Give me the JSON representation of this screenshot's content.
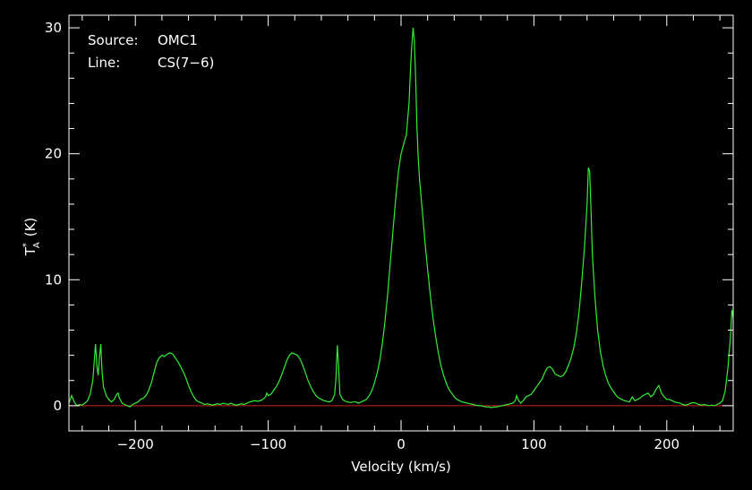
{
  "colors": {
    "background": "#000000",
    "axis": "#ffffff",
    "spectrum": "#33ee33",
    "baseline": "#cc2222"
  },
  "chart_data": {
    "type": "line",
    "title": "",
    "xlabel": "Velocity (km/s)",
    "ylabel_main": "T",
    "ylabel_sup": "*",
    "ylabel_sub": "A",
    "ylabel_unit": "(K)",
    "xlim": [
      -250,
      250
    ],
    "ylim": [
      -2,
      31
    ],
    "xticks": [
      -200,
      -100,
      0,
      100,
      200
    ],
    "yticks": [
      0,
      10,
      20,
      30
    ],
    "x_tick_labels": [
      "−200",
      "−100",
      "0",
      "100",
      "200"
    ],
    "y_tick_labels": [
      "0",
      "10",
      "20",
      "30"
    ],
    "annotation": {
      "source_label": "Source:",
      "source_value": "OMC1",
      "line_label": "Line:",
      "line_value": "CS(7−6)"
    },
    "baseline_y": 0,
    "series": [
      {
        "points": [
          [
            -250,
            0.2
          ],
          [
            -248,
            0.8
          ],
          [
            -246,
            0.3
          ],
          [
            -244,
            0.0
          ],
          [
            -242,
            0.1
          ],
          [
            -240,
            0.05
          ],
          [
            -238,
            0.2
          ],
          [
            -236,
            0.4
          ],
          [
            -234,
            0.9
          ],
          [
            -232,
            2.0
          ],
          [
            -230,
            4.9
          ],
          [
            -229,
            3.2
          ],
          [
            -228,
            2.4
          ],
          [
            -227,
            3.8
          ],
          [
            -226,
            4.9
          ],
          [
            -225,
            2.6
          ],
          [
            -224,
            1.5
          ],
          [
            -222,
            0.8
          ],
          [
            -220,
            0.5
          ],
          [
            -218,
            0.3
          ],
          [
            -216,
            0.5
          ],
          [
            -214,
            0.9
          ],
          [
            -213,
            1.0
          ],
          [
            -212,
            0.6
          ],
          [
            -210,
            0.2
          ],
          [
            -208,
            0.1
          ],
          [
            -206,
            0.0
          ],
          [
            -204,
            -0.1
          ],
          [
            -202,
            0.1
          ],
          [
            -200,
            0.2
          ],
          [
            -198,
            0.3
          ],
          [
            -196,
            0.5
          ],
          [
            -194,
            0.6
          ],
          [
            -192,
            0.8
          ],
          [
            -190,
            1.2
          ],
          [
            -188,
            1.8
          ],
          [
            -186,
            2.6
          ],
          [
            -184,
            3.4
          ],
          [
            -182,
            3.8
          ],
          [
            -180,
            4.0
          ],
          [
            -178,
            3.9
          ],
          [
            -176,
            4.1
          ],
          [
            -174,
            4.2
          ],
          [
            -172,
            4.1
          ],
          [
            -170,
            3.8
          ],
          [
            -168,
            3.5
          ],
          [
            -166,
            3.1
          ],
          [
            -164,
            2.7
          ],
          [
            -162,
            2.2
          ],
          [
            -160,
            1.6
          ],
          [
            -158,
            1.1
          ],
          [
            -156,
            0.7
          ],
          [
            -154,
            0.4
          ],
          [
            -152,
            0.3
          ],
          [
            -150,
            0.2
          ],
          [
            -148,
            0.1
          ],
          [
            -146,
            0.15
          ],
          [
            -144,
            0.1
          ],
          [
            -142,
            0.05
          ],
          [
            -140,
            0.1
          ],
          [
            -138,
            0.15
          ],
          [
            -136,
            0.1
          ],
          [
            -134,
            0.2
          ],
          [
            -132,
            0.15
          ],
          [
            -130,
            0.1
          ],
          [
            -128,
            0.2
          ],
          [
            -126,
            0.1
          ],
          [
            -124,
            0.05
          ],
          [
            -122,
            0.1
          ],
          [
            -120,
            0.15
          ],
          [
            -118,
            0.1
          ],
          [
            -116,
            0.2
          ],
          [
            -114,
            0.3
          ],
          [
            -112,
            0.35
          ],
          [
            -110,
            0.4
          ],
          [
            -108,
            0.35
          ],
          [
            -106,
            0.4
          ],
          [
            -104,
            0.5
          ],
          [
            -102,
            0.7
          ],
          [
            -101,
            1.0
          ],
          [
            -100,
            0.8
          ],
          [
            -98,
            0.9
          ],
          [
            -96,
            1.2
          ],
          [
            -94,
            1.5
          ],
          [
            -92,
            1.9
          ],
          [
            -90,
            2.4
          ],
          [
            -88,
            3.0
          ],
          [
            -86,
            3.6
          ],
          [
            -84,
            4.0
          ],
          [
            -82,
            4.2
          ],
          [
            -80,
            4.1
          ],
          [
            -78,
            4.0
          ],
          [
            -76,
            3.7
          ],
          [
            -74,
            3.2
          ],
          [
            -72,
            2.6
          ],
          [
            -70,
            2.0
          ],
          [
            -68,
            1.5
          ],
          [
            -66,
            1.1
          ],
          [
            -64,
            0.8
          ],
          [
            -62,
            0.6
          ],
          [
            -60,
            0.5
          ],
          [
            -58,
            0.4
          ],
          [
            -56,
            0.35
          ],
          [
            -54,
            0.3
          ],
          [
            -52,
            0.4
          ],
          [
            -50,
            0.9
          ],
          [
            -49,
            2.2
          ],
          [
            -48,
            4.8
          ],
          [
            -47,
            3.0
          ],
          [
            -46,
            0.9
          ],
          [
            -44,
            0.5
          ],
          [
            -42,
            0.35
          ],
          [
            -40,
            0.3
          ],
          [
            -38,
            0.25
          ],
          [
            -36,
            0.3
          ],
          [
            -34,
            0.3
          ],
          [
            -32,
            0.2
          ],
          [
            -30,
            0.3
          ],
          [
            -28,
            0.4
          ],
          [
            -26,
            0.5
          ],
          [
            -24,
            0.8
          ],
          [
            -22,
            1.2
          ],
          [
            -20,
            1.8
          ],
          [
            -18,
            2.6
          ],
          [
            -16,
            3.6
          ],
          [
            -14,
            5.0
          ],
          [
            -12,
            6.8
          ],
          [
            -10,
            9.0
          ],
          [
            -8,
            11.5
          ],
          [
            -6,
            14.0
          ],
          [
            -4,
            16.5
          ],
          [
            -2,
            18.6
          ],
          [
            0,
            20.0
          ],
          [
            2,
            20.8
          ],
          [
            4,
            21.5
          ],
          [
            6,
            24.0
          ],
          [
            7,
            26.5
          ],
          [
            8,
            28.5
          ],
          [
            9,
            30.0
          ],
          [
            10,
            29.0
          ],
          [
            11,
            26.0
          ],
          [
            12,
            22.0
          ],
          [
            13,
            19.5
          ],
          [
            14,
            17.8
          ],
          [
            16,
            15.5
          ],
          [
            18,
            13.0
          ],
          [
            20,
            10.8
          ],
          [
            22,
            8.8
          ],
          [
            24,
            7.0
          ],
          [
            26,
            5.5
          ],
          [
            28,
            4.2
          ],
          [
            30,
            3.2
          ],
          [
            32,
            2.4
          ],
          [
            34,
            1.8
          ],
          [
            36,
            1.3
          ],
          [
            38,
            1.0
          ],
          [
            40,
            0.7
          ],
          [
            42,
            0.5
          ],
          [
            44,
            0.4
          ],
          [
            46,
            0.3
          ],
          [
            48,
            0.25
          ],
          [
            50,
            0.2
          ],
          [
            52,
            0.15
          ],
          [
            54,
            0.1
          ],
          [
            56,
            0.05
          ],
          [
            58,
            0.0
          ],
          [
            60,
            0.0
          ],
          [
            62,
            -0.05
          ],
          [
            64,
            -0.1
          ],
          [
            66,
            -0.1
          ],
          [
            68,
            -0.15
          ],
          [
            70,
            -0.1
          ],
          [
            72,
            -0.1
          ],
          [
            74,
            -0.05
          ],
          [
            76,
            0.0
          ],
          [
            78,
            0.05
          ],
          [
            80,
            0.1
          ],
          [
            82,
            0.15
          ],
          [
            84,
            0.2
          ],
          [
            86,
            0.4
          ],
          [
            87,
            0.8
          ],
          [
            88,
            0.5
          ],
          [
            90,
            0.2
          ],
          [
            92,
            0.4
          ],
          [
            94,
            0.7
          ],
          [
            96,
            0.8
          ],
          [
            98,
            0.9
          ],
          [
            100,
            1.2
          ],
          [
            102,
            1.5
          ],
          [
            104,
            1.8
          ],
          [
            106,
            2.1
          ],
          [
            108,
            2.6
          ],
          [
            110,
            3.0
          ],
          [
            112,
            3.1
          ],
          [
            114,
            2.9
          ],
          [
            116,
            2.5
          ],
          [
            118,
            2.4
          ],
          [
            120,
            2.3
          ],
          [
            122,
            2.4
          ],
          [
            124,
            2.7
          ],
          [
            126,
            3.2
          ],
          [
            128,
            3.8
          ],
          [
            130,
            4.6
          ],
          [
            132,
            5.8
          ],
          [
            134,
            7.5
          ],
          [
            136,
            9.8
          ],
          [
            138,
            12.5
          ],
          [
            140,
            16.0
          ],
          [
            141,
            18.9
          ],
          [
            142,
            18.6
          ],
          [
            143,
            15.5
          ],
          [
            144,
            12.0
          ],
          [
            146,
            8.5
          ],
          [
            148,
            6.0
          ],
          [
            150,
            4.3
          ],
          [
            152,
            3.2
          ],
          [
            154,
            2.4
          ],
          [
            156,
            1.8
          ],
          [
            158,
            1.4
          ],
          [
            160,
            1.1
          ],
          [
            162,
            0.8
          ],
          [
            164,
            0.6
          ],
          [
            166,
            0.5
          ],
          [
            168,
            0.4
          ],
          [
            170,
            0.35
          ],
          [
            172,
            0.3
          ],
          [
            174,
            0.7
          ],
          [
            176,
            0.4
          ],
          [
            178,
            0.5
          ],
          [
            180,
            0.6
          ],
          [
            182,
            0.8
          ],
          [
            184,
            0.9
          ],
          [
            186,
            1.0
          ],
          [
            188,
            0.7
          ],
          [
            190,
            0.9
          ],
          [
            192,
            1.3
          ],
          [
            194,
            1.6
          ],
          [
            196,
            1.0
          ],
          [
            198,
            0.7
          ],
          [
            200,
            0.5
          ],
          [
            202,
            0.5
          ],
          [
            204,
            0.4
          ],
          [
            206,
            0.3
          ],
          [
            208,
            0.25
          ],
          [
            210,
            0.2
          ],
          [
            212,
            0.1
          ],
          [
            214,
            0.05
          ],
          [
            216,
            0.1
          ],
          [
            218,
            0.2
          ],
          [
            220,
            0.25
          ],
          [
            222,
            0.2
          ],
          [
            224,
            0.1
          ],
          [
            226,
            0.05
          ],
          [
            228,
            0.1
          ],
          [
            230,
            0.05
          ],
          [
            232,
            0.0
          ],
          [
            234,
            0.05
          ],
          [
            236,
            0.0
          ],
          [
            238,
            0.1
          ],
          [
            240,
            0.2
          ],
          [
            242,
            0.4
          ],
          [
            244,
            1.2
          ],
          [
            246,
            3.0
          ],
          [
            248,
            5.5
          ],
          [
            249,
            7.6
          ],
          [
            250,
            7.0
          ]
        ]
      }
    ]
  }
}
